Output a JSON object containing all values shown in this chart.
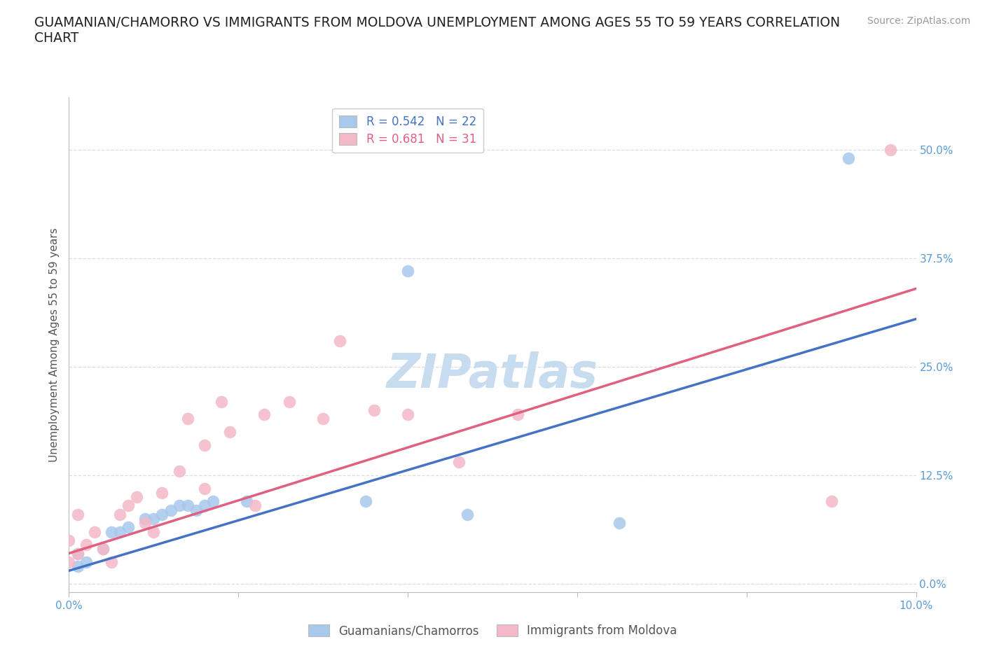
{
  "title": "GUAMANIAN/CHAMORRO VS IMMIGRANTS FROM MOLDOVA UNEMPLOYMENT AMONG AGES 55 TO 59 YEARS CORRELATION\nCHART",
  "ylabel": "Unemployment Among Ages 55 to 59 years",
  "source": "Source: ZipAtlas.com",
  "watermark": "ZIPatlas",
  "xlim": [
    0.0,
    0.1
  ],
  "ylim": [
    -0.01,
    0.56
  ],
  "xticks": [
    0.0,
    0.02,
    0.04,
    0.06,
    0.08,
    0.1
  ],
  "yticks": [
    0.0,
    0.125,
    0.25,
    0.375,
    0.5
  ],
  "ytick_labels": [
    "0.0%",
    "12.5%",
    "25.0%",
    "37.5%",
    "50.0%"
  ],
  "xtick_labels": [
    "0.0%",
    "",
    "",
    "",
    "",
    "10.0%"
  ],
  "blue_R": 0.542,
  "blue_N": 22,
  "pink_R": 0.681,
  "pink_N": 31,
  "blue_color": "#A8C8EC",
  "pink_color": "#F4B8C8",
  "blue_line_color": "#4472C4",
  "pink_line_color": "#E06080",
  "tick_color": "#5B9BD5",
  "legend_label_blue": "Guamanians/Chamorros",
  "legend_label_pink": "Immigrants from Moldova",
  "blue_scatter_x": [
    0.001,
    0.001,
    0.002,
    0.004,
    0.005,
    0.006,
    0.007,
    0.009,
    0.01,
    0.011,
    0.012,
    0.013,
    0.014,
    0.015,
    0.016,
    0.017,
    0.021,
    0.035,
    0.04,
    0.047,
    0.065,
    0.092
  ],
  "blue_scatter_y": [
    0.02,
    0.035,
    0.025,
    0.04,
    0.06,
    0.06,
    0.065,
    0.075,
    0.075,
    0.08,
    0.085,
    0.09,
    0.09,
    0.085,
    0.09,
    0.095,
    0.095,
    0.095,
    0.36,
    0.08,
    0.07,
    0.49
  ],
  "pink_scatter_x": [
    0.0,
    0.0,
    0.001,
    0.001,
    0.002,
    0.003,
    0.004,
    0.005,
    0.006,
    0.007,
    0.008,
    0.009,
    0.01,
    0.011,
    0.013,
    0.014,
    0.016,
    0.016,
    0.018,
    0.019,
    0.022,
    0.023,
    0.026,
    0.03,
    0.032,
    0.036,
    0.04,
    0.046,
    0.053,
    0.09,
    0.097
  ],
  "pink_scatter_y": [
    0.025,
    0.05,
    0.035,
    0.08,
    0.045,
    0.06,
    0.04,
    0.025,
    0.08,
    0.09,
    0.1,
    0.07,
    0.06,
    0.105,
    0.13,
    0.19,
    0.11,
    0.16,
    0.21,
    0.175,
    0.09,
    0.195,
    0.21,
    0.19,
    0.28,
    0.2,
    0.195,
    0.14,
    0.195,
    0.095,
    0.5
  ],
  "blue_line_x": [
    0.0,
    0.1
  ],
  "blue_line_y": [
    0.015,
    0.305
  ],
  "pink_line_x": [
    0.0,
    0.1
  ],
  "pink_line_y": [
    0.035,
    0.34
  ],
  "background_color": "#FFFFFF",
  "grid_color": "#DDDDDD",
  "title_fontsize": 13.5,
  "axis_label_fontsize": 11,
  "tick_fontsize": 11,
  "legend_fontsize": 12,
  "source_fontsize": 10,
  "watermark_fontsize": 48,
  "watermark_color": "#C8DCF0"
}
